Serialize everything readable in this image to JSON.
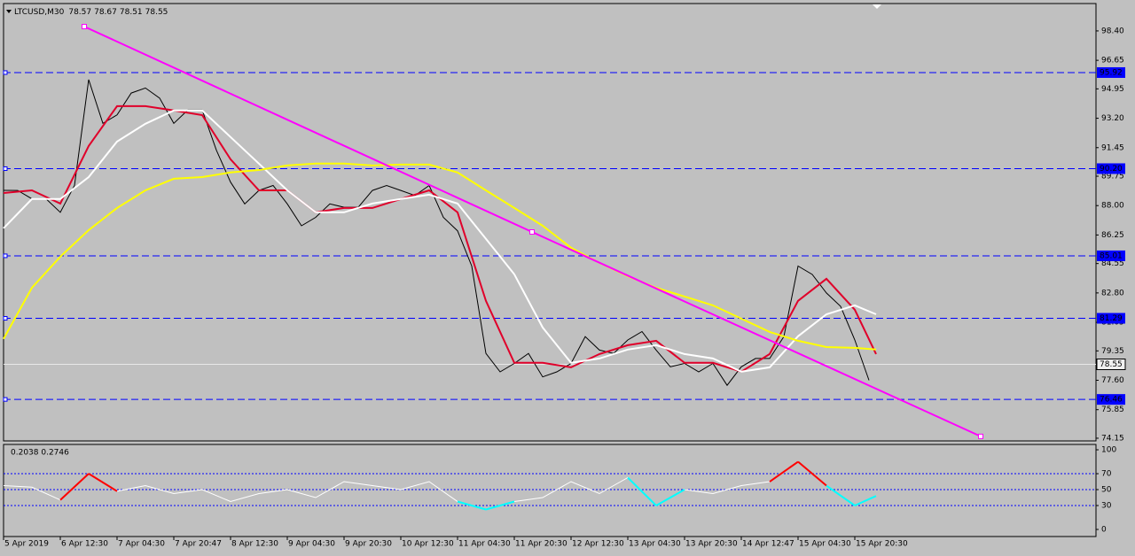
{
  "header": {
    "symbol": "LTCUSD,M30",
    "open": 78.57,
    "high": 78.67,
    "low": 78.51,
    "close": 78.55
  },
  "chart_data": [
    {
      "type": "line",
      "xlim": [
        0,
        616
      ],
      "ylim": [
        73.99,
        100.03
      ],
      "xticks": [
        {
          "value": 0,
          "label": "5 Apr 2019"
        },
        {
          "value": 32,
          "label": "6 Apr 12:30"
        },
        {
          "value": 64,
          "label": "7 Apr 04:30"
        },
        {
          "value": 96,
          "label": "7 Apr 20:47"
        },
        {
          "value": 128,
          "label": "8 Apr 12:30"
        },
        {
          "value": 160,
          "label": "9 Apr 04:30"
        },
        {
          "value": 192,
          "label": "9 Apr 20:30"
        },
        {
          "value": 224,
          "label": "10 Apr 12:30"
        },
        {
          "value": 256,
          "label": "11 Apr 04:30"
        },
        {
          "value": 288,
          "label": "11 Apr 20:30"
        },
        {
          "value": 320,
          "label": "12 Apr 12:30"
        },
        {
          "value": 352,
          "label": "13 Apr 04:30"
        },
        {
          "value": 384,
          "label": "13 Apr 20:30"
        },
        {
          "value": 416,
          "label": "14 Apr 12:47"
        },
        {
          "value": 448,
          "label": "15 Apr 04:30"
        },
        {
          "value": 480,
          "label": "15 Apr 20:30"
        }
      ],
      "yticks": [
        {
          "value": 98.4,
          "label": "98.40"
        },
        96.65,
        94.95,
        {
          "value": 93.2,
          "label": "93.20"
        },
        91.45,
        89.75,
        {
          "value": 88.0,
          "label": "88.00"
        },
        86.25,
        84.55,
        {
          "value": 82.8,
          "label": "82.80"
        },
        81.05,
        79.35,
        {
          "value": 77.6,
          "label": "77.60"
        },
        75.85,
        74.15
      ],
      "hlines": [
        95.92,
        {
          "value": 90.2,
          "label": "90.20"
        },
        85.01,
        81.29,
        76.46
      ],
      "hline_color": "#0000ff",
      "last_price": 78.55,
      "trendline": {
        "x": [
          45.5,
          298,
          551
        ],
        "values": [
          98.66,
          86.43,
          74.26
        ],
        "color": "#ff00ff"
      },
      "series": [
        {
          "color": "#000000",
          "x": [
            0,
            8,
            16,
            24,
            32,
            40,
            48,
            56,
            64,
            72,
            80,
            88,
            96,
            104,
            112,
            120,
            128,
            136,
            144,
            152,
            160,
            168,
            176,
            184,
            192,
            200,
            208,
            216,
            224,
            232,
            240,
            248,
            256,
            264,
            272,
            280,
            288,
            296,
            304,
            312,
            320,
            328,
            336,
            344,
            352,
            360,
            368,
            376,
            384,
            392,
            400,
            408,
            416,
            424,
            432,
            440,
            448,
            456,
            464,
            472,
            480,
            488
          ],
          "values": [
            88.91,
            88.9,
            88.4,
            88.4,
            87.6,
            89.2,
            95.5,
            92.9,
            93.4,
            94.7,
            95.0,
            94.4,
            92.9,
            93.7,
            93.7,
            91.3,
            89.4,
            88.1,
            88.9,
            89.2,
            88.1,
            86.8,
            87.3,
            88.1,
            87.9,
            87.9,
            88.9,
            89.2,
            88.9,
            88.6,
            89.2,
            87.3,
            86.5,
            84.4,
            79.2,
            78.1,
            78.6,
            79.2,
            77.8,
            78.1,
            78.6,
            80.2,
            79.4,
            79.2,
            80.0,
            80.5,
            79.4,
            78.4,
            78.6,
            78.1,
            78.6,
            77.3,
            78.4,
            78.9,
            78.9,
            80.2,
            84.4,
            83.9,
            82.8,
            82.0,
            80.0,
            77.6
          ]
        },
        {
          "color": "#e0002a",
          "x": [
            0,
            16,
            32,
            48,
            64,
            80,
            96,
            112,
            128,
            144,
            160,
            176,
            192,
            208,
            224,
            240,
            256,
            272,
            288,
            304,
            320,
            336,
            352,
            368,
            384,
            400,
            416,
            432,
            448,
            464,
            480,
            492
          ],
          "values": [
            88.75,
            88.91,
            88.12,
            91.55,
            93.92,
            93.92,
            93.66,
            93.39,
            90.76,
            88.91,
            88.91,
            87.6,
            87.86,
            87.86,
            88.39,
            88.91,
            87.6,
            82.33,
            78.64,
            78.64,
            78.37,
            79.16,
            79.69,
            79.95,
            78.64,
            78.64,
            78.11,
            79.16,
            82.33,
            83.64,
            81.8,
            79.16
          ]
        },
        {
          "color": "#ffffff",
          "x": [
            0,
            16,
            32,
            48,
            64,
            80,
            96,
            112,
            128,
            144,
            160,
            176,
            192,
            208,
            224,
            240,
            256,
            272,
            288,
            304,
            320,
            336,
            352,
            368,
            384,
            400,
            416,
            432,
            448,
            464,
            480,
            492
          ],
          "values": [
            86.65,
            88.39,
            88.39,
            89.7,
            91.81,
            92.87,
            93.66,
            93.66,
            92.08,
            90.5,
            88.91,
            87.6,
            87.6,
            88.12,
            88.39,
            88.65,
            88.12,
            86.02,
            83.91,
            80.74,
            78.64,
            78.9,
            79.43,
            79.69,
            79.16,
            78.9,
            78.11,
            78.37,
            80.22,
            81.53,
            82.06,
            81.53
          ]
        },
        {
          "color": "#ffff00",
          "x": [
            0,
            16,
            32,
            48,
            64,
            80,
            96,
            112,
            128,
            144,
            160,
            176,
            192,
            208,
            224,
            240,
            256,
            272,
            288,
            304,
            320,
            336,
            352,
            368,
            384,
            400,
            416,
            432,
            448,
            464,
            480,
            492
          ],
          "values": [
            80.06,
            83.11,
            84.96,
            86.54,
            87.86,
            88.91,
            89.6,
            89.7,
            89.97,
            90.12,
            90.39,
            90.5,
            90.5,
            90.39,
            90.44,
            90.44,
            89.97,
            88.91,
            87.86,
            86.8,
            85.49,
            84.59,
            83.8,
            83.11,
            82.59,
            82.06,
            81.27,
            80.48,
            79.95,
            79.58,
            79.53,
            79.43
          ]
        }
      ]
    },
    {
      "type": "line",
      "title": "0.2038 0.2746",
      "xlim": [
        0,
        616
      ],
      "ylim": [
        -8.9,
        106.7
      ],
      "yticks": [
        100,
        70,
        50,
        30,
        0
      ],
      "levels": [
        70,
        50,
        30
      ],
      "level_color": "#0000ff",
      "upper_color": "#ff0000",
      "lower_color": "#00ffff",
      "series": [
        {
          "color": "#ffffff",
          "x": [
            0,
            16,
            32,
            48,
            64,
            80,
            96,
            112,
            128,
            144,
            160,
            176,
            192,
            208,
            224,
            240,
            256,
            272,
            288,
            304,
            320,
            336,
            352,
            368,
            384,
            400,
            416,
            432,
            448,
            464,
            480,
            492
          ],
          "values": [
            55,
            53,
            37,
            70,
            48,
            55,
            45,
            50,
            35,
            45,
            50,
            40,
            60,
            55,
            50,
            60,
            35,
            25,
            35,
            40,
            60,
            45,
            65,
            30,
            50,
            45,
            55,
            60,
            85,
            55,
            30,
            42
          ]
        }
      ]
    }
  ]
}
